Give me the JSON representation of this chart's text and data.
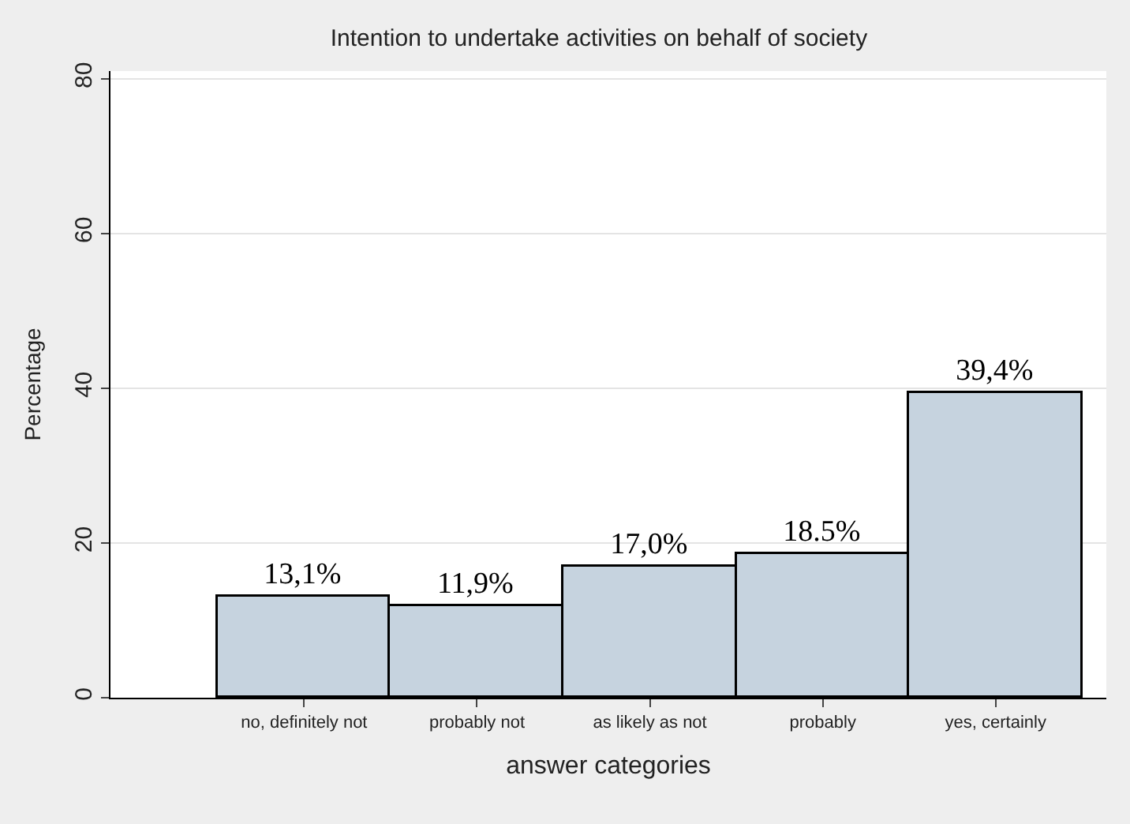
{
  "chart_data": {
    "type": "bar",
    "title": "Intention to undertake activities on behalf of society",
    "xlabel": "answer categories",
    "ylabel": "Percentage",
    "categories": [
      "no, definitely not",
      "probably not",
      "as likely as not",
      "probably",
      "yes, certainly"
    ],
    "values": [
      13.1,
      11.9,
      17.0,
      18.5,
      39.4
    ],
    "value_labels": [
      "13,1%",
      "11,9%",
      "17,0%",
      "18.5%",
      "39,4%"
    ],
    "color": "#c6d3df",
    "ylim": [
      0,
      81
    ],
    "yticks": [
      0,
      20,
      40,
      60,
      80
    ],
    "grid": "y",
    "legend": false
  }
}
